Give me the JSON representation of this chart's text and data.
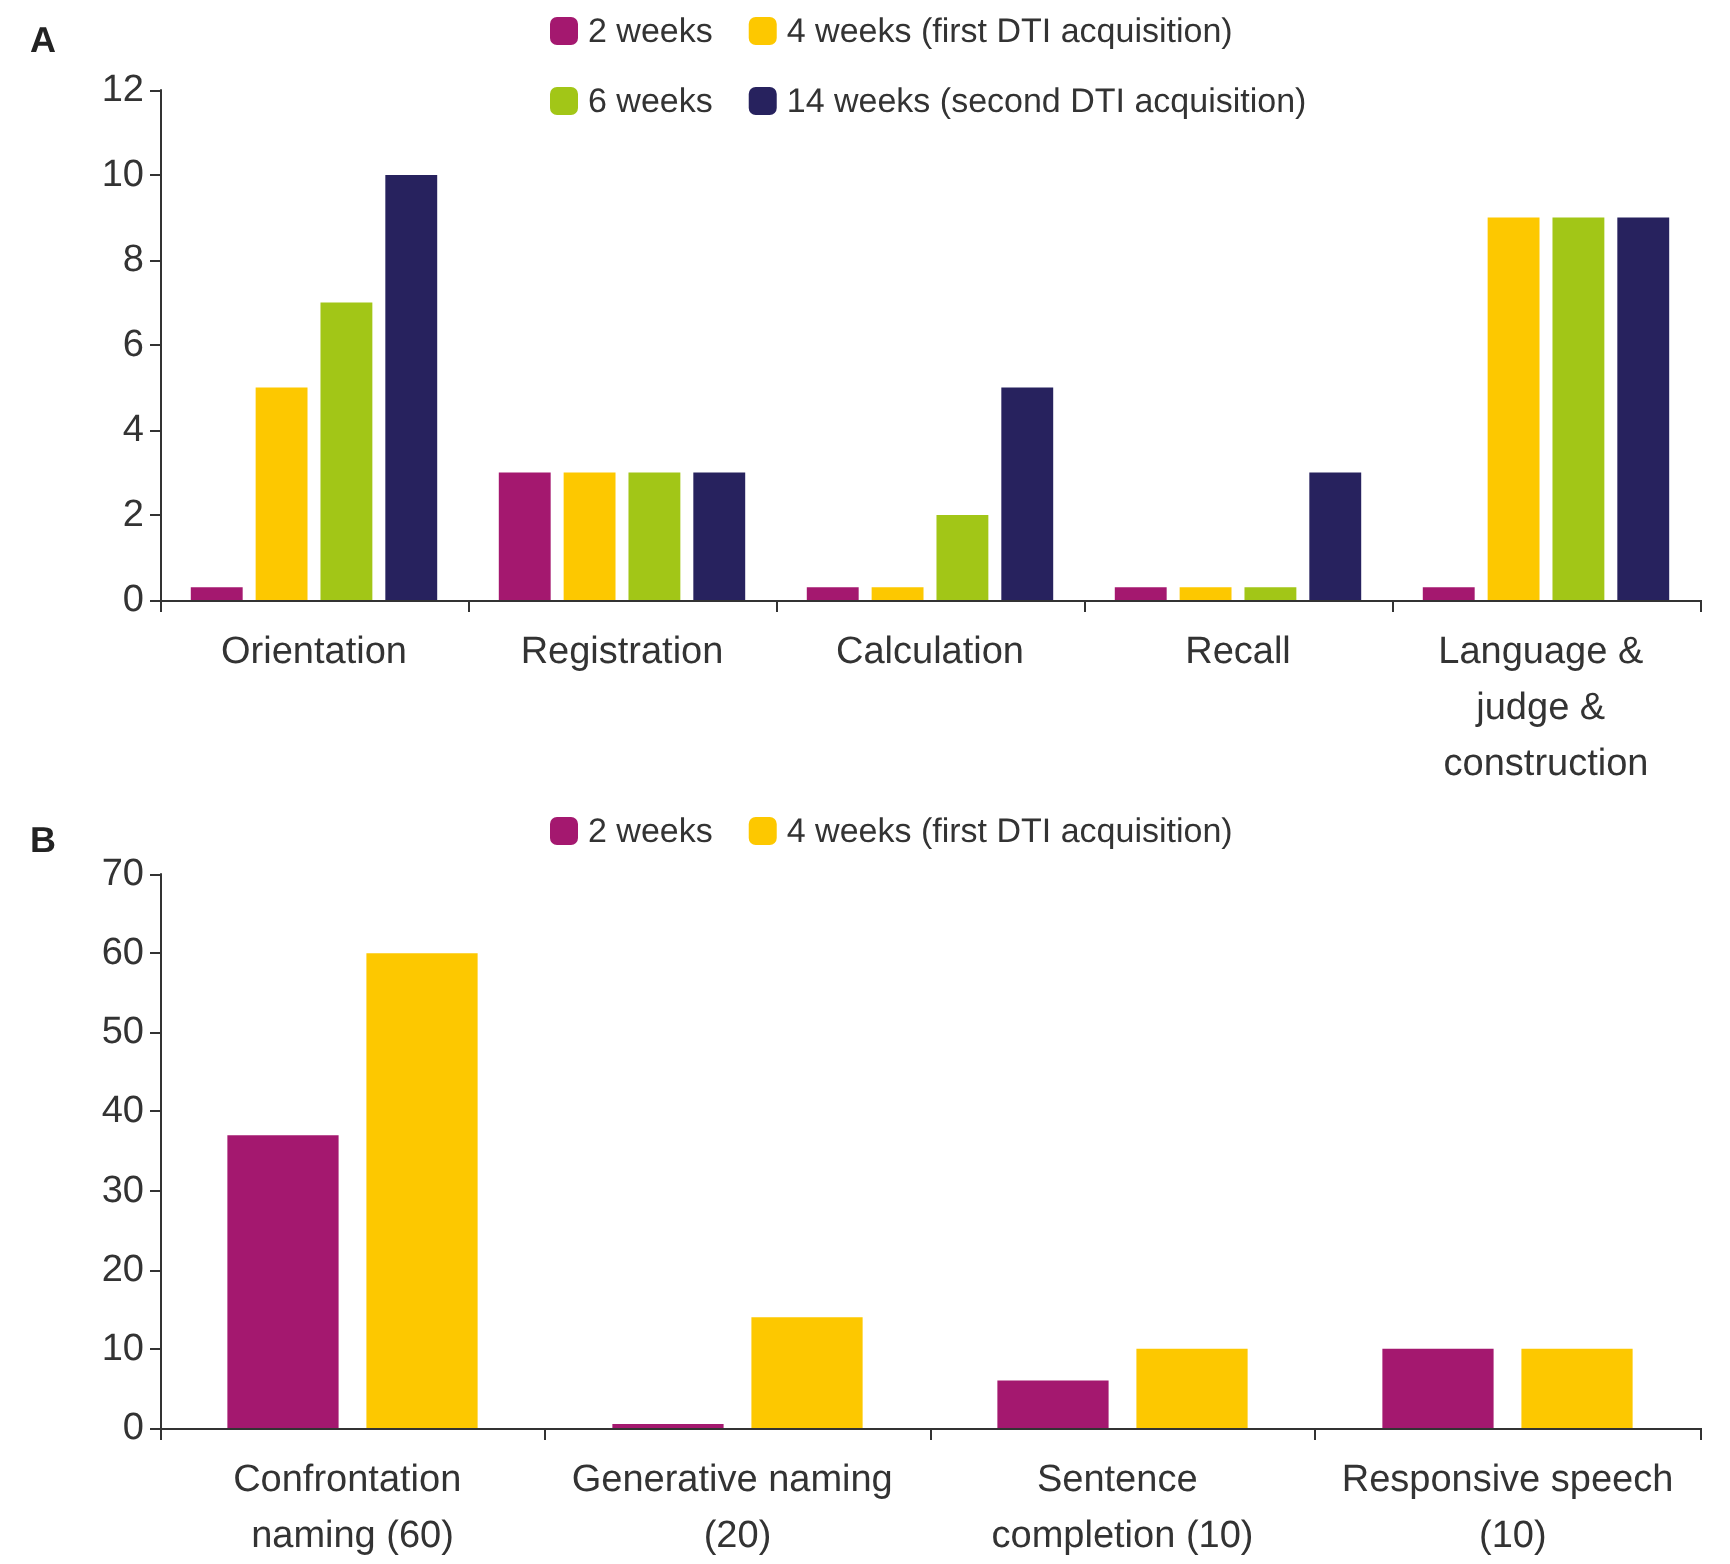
{
  "chart_data": [
    {
      "type": "bar",
      "title": "A",
      "categories": [
        "Orientation",
        "Registration",
        "Calculation",
        "Recall",
        "Language & judge & construction"
      ],
      "series": [
        {
          "name": "2 weeks",
          "color": "#a4186f",
          "values": [
            0.3,
            3,
            0.3,
            0.3,
            0.3
          ]
        },
        {
          "name": "4 weeks (first DTI acquisition)",
          "color": "#fdc800",
          "values": [
            5,
            3,
            0.3,
            0.3,
            9
          ]
        },
        {
          "name": "6 weeks",
          "color": "#a2c617",
          "values": [
            7,
            3,
            2,
            0.3,
            9
          ]
        },
        {
          "name": "14 weeks (second DTI acquisition)",
          "color": "#27225e",
          "values": [
            10,
            3,
            5,
            3,
            9
          ]
        }
      ],
      "ylim": [
        0,
        12
      ],
      "yticks": [
        0,
        2,
        4,
        6,
        8,
        10,
        12
      ],
      "grid": false,
      "legend": "top"
    },
    {
      "type": "bar",
      "title": "B",
      "categories": [
        "Confrontation naming (60)",
        "Generative naming (20)",
        "Sentence completion (10)",
        "Responsive speech (10)"
      ],
      "series": [
        {
          "name": "2 weeks",
          "color": "#a4186f",
          "values": [
            37,
            0.5,
            6,
            10
          ]
        },
        {
          "name": "4 weeks (first DTI acquisition)",
          "color": "#fdc800",
          "values": [
            60,
            14,
            10,
            10
          ]
        }
      ],
      "ylim": [
        0,
        70
      ],
      "yticks": [
        0,
        10,
        20,
        30,
        40,
        50,
        60,
        70
      ],
      "grid": false,
      "legend": "top"
    }
  ]
}
